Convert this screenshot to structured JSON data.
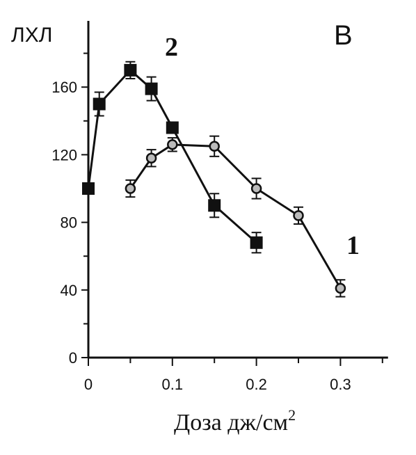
{
  "chart_data": {
    "type": "line",
    "panel_label": "В",
    "ylabel": "ЛХЛ",
    "xlabel": "Доза дж/см",
    "xlabel_sup": "2",
    "xlim": [
      0,
      0.35
    ],
    "ylim": [
      0,
      200
    ],
    "x_ticks": [
      0,
      0.1,
      0.2,
      0.3
    ],
    "x_tick_labels": [
      "0",
      "0.1",
      "0.2",
      "0.3"
    ],
    "y_ticks": [
      0,
      40,
      80,
      120,
      160
    ],
    "y_tick_labels": [
      "0",
      "40",
      "80",
      "120",
      "160"
    ],
    "grid": false,
    "series": [
      {
        "name": "1",
        "marker": "circle-open",
        "x": [
          0.05,
          0.075,
          0.1,
          0.15,
          0.2,
          0.25,
          0.3
        ],
        "y": [
          100,
          118,
          126,
          125,
          100,
          84,
          41
        ],
        "err": [
          5,
          5,
          4,
          6,
          6,
          5,
          5
        ]
      },
      {
        "name": "2",
        "marker": "square-filled",
        "x": [
          0,
          0.013,
          0.05,
          0.075,
          0.1,
          0.15,
          0.2
        ],
        "y": [
          100,
          150,
          170,
          159,
          136,
          90,
          68
        ],
        "err": [
          0,
          7,
          5,
          7,
          0,
          7,
          6
        ]
      }
    ]
  }
}
